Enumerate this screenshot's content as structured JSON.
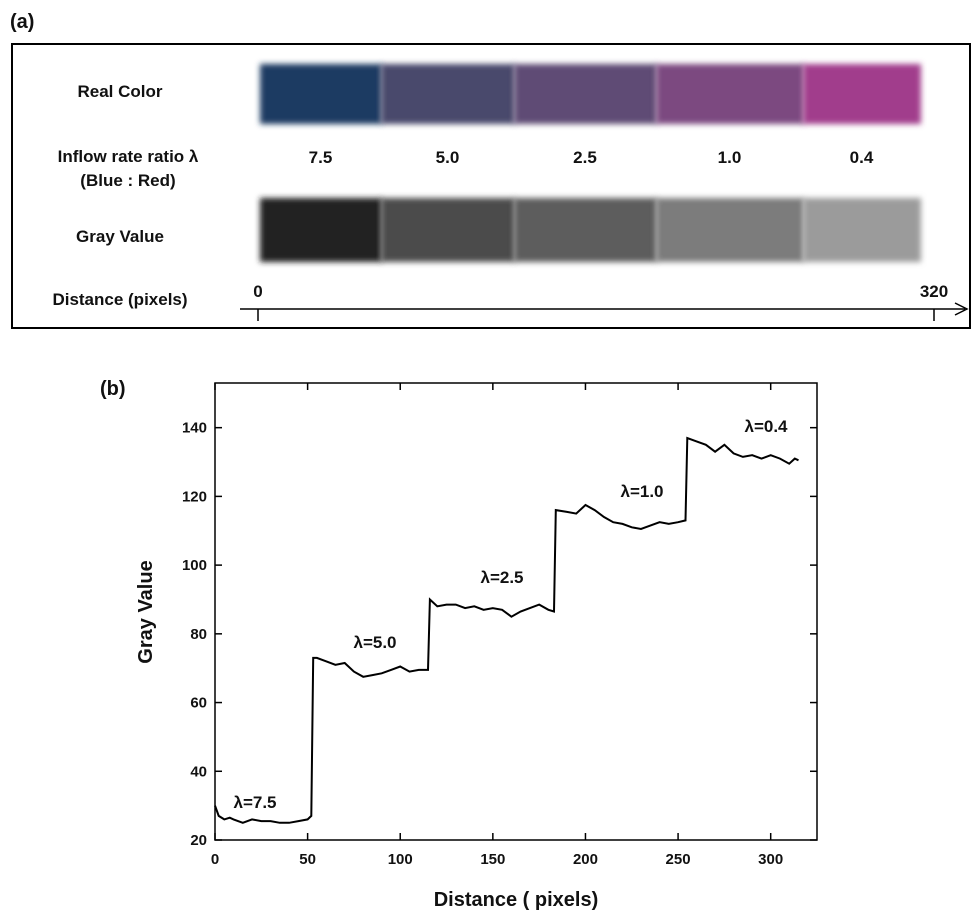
{
  "panel_a": {
    "label": "(a)",
    "real_color_label": "Real Color",
    "ratio_label": "Inflow rate ratio λ",
    "ratio_sublabel": "(Blue : Red)",
    "gray_label": "Gray Value",
    "distance_label": "Distance (pixels)",
    "segments": [
      {
        "ratio": "7.5",
        "color": "#1f3a62",
        "gray": "#232323"
      },
      {
        "ratio": "5.0",
        "color": "#4a4a6c",
        "gray": "#4b4b4b"
      },
      {
        "ratio": "2.5",
        "color": "#5f4c74",
        "gray": "#5d5d5d"
      },
      {
        "ratio": "1.0",
        "color": "#7b4a80",
        "gray": "#7b7b7b"
      },
      {
        "ratio": "0.4",
        "color": "#a13c8c",
        "gray": "#9b9b9b"
      }
    ],
    "distance_ticks": [
      0,
      320
    ]
  },
  "chart_data": {
    "type": "line",
    "label": "(b)",
    "x_label": "Distance  ( pixels)",
    "y_label": "Gray Value",
    "color": "#000000",
    "x": [
      0,
      2,
      5,
      8,
      10,
      15,
      20,
      25,
      30,
      35,
      40,
      45,
      50,
      52,
      53,
      55,
      60,
      65,
      70,
      75,
      80,
      85,
      90,
      95,
      100,
      105,
      110,
      115,
      116,
      120,
      125,
      130,
      135,
      140,
      145,
      150,
      155,
      160,
      165,
      170,
      175,
      180,
      183,
      184,
      190,
      195,
      200,
      205,
      210,
      215,
      220,
      225,
      230,
      235,
      240,
      245,
      250,
      254,
      255,
      260,
      265,
      270,
      275,
      280,
      285,
      290,
      295,
      300,
      305,
      310,
      313,
      315
    ],
    "values": [
      30,
      27,
      26,
      26.5,
      26,
      25,
      26,
      25.5,
      25.5,
      25,
      25,
      25.5,
      26,
      27,
      73,
      73,
      72,
      71,
      71.5,
      69,
      67.5,
      68,
      68.5,
      69.5,
      70.5,
      69,
      69.5,
      69.5,
      90,
      88,
      88.5,
      88.5,
      87.5,
      88,
      87,
      87.5,
      87,
      85,
      86.5,
      87.5,
      88.5,
      87,
      86.5,
      116,
      115.5,
      115,
      117.5,
      116,
      114,
      112.5,
      112,
      111,
      110.5,
      111.5,
      112.5,
      112,
      112.5,
      113,
      137,
      136,
      135,
      133,
      135,
      132.5,
      131.5,
      132,
      131,
      132,
      131,
      129.5,
      131,
      130.5
    ],
    "annotations": [
      "λ=7.5",
      "λ=5.0",
      "λ=2.5",
      "λ=1.0",
      "λ=0.4"
    ],
    "xlim": [
      0,
      325
    ],
    "ylim": [
      20,
      153
    ],
    "xticks": [
      0,
      50,
      100,
      150,
      200,
      250,
      300
    ],
    "yticks": [
      20,
      40,
      60,
      80,
      100,
      120,
      140
    ]
  }
}
